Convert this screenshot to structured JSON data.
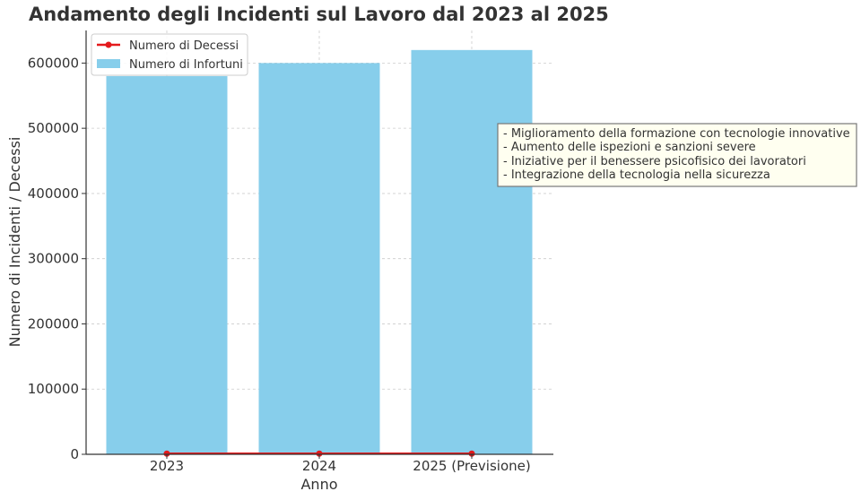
{
  "chart_data": {
    "type": "bar",
    "title": "Andamento degli Incidenti sul Lavoro dal 2023 al 2025",
    "xlabel": "Anno",
    "ylabel": "Numero di Incidenti / Decessi",
    "categories": [
      "2023",
      "2024",
      "2025 (Previsione)"
    ],
    "ylim": [
      0,
      650000
    ],
    "yticks": [
      0,
      100000,
      200000,
      300000,
      400000,
      500000,
      600000
    ],
    "grid": true,
    "legend_position": "top-left",
    "series": [
      {
        "name": "Numero di Infortuni",
        "type": "bar",
        "color": "#87CEEB",
        "values": [
          580000,
          600000,
          620000
        ]
      },
      {
        "name": "Numero di Decessi",
        "type": "line",
        "color": "#e41a1c",
        "values": [
          1000,
          1000,
          1000
        ]
      }
    ],
    "annotation": {
      "lines": [
        "- Miglioramento della formazione con tecnologie innovative",
        "- Aumento delle ispezioni e sanzioni severe",
        "- Iniziative per il benessere psicofisico dei lavoratori",
        "- Integrazione della tecnologia nella sicurezza"
      ],
      "background": "#fffff0"
    }
  }
}
